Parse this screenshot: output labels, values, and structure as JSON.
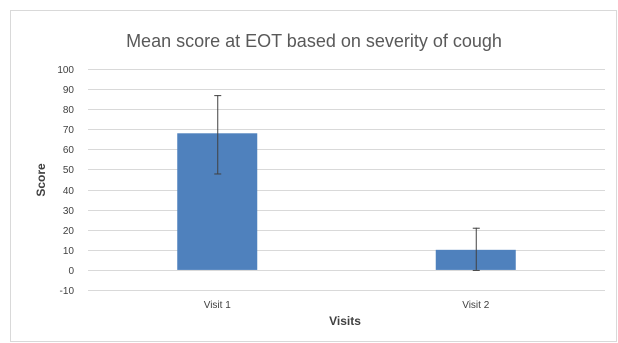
{
  "chart_data": {
    "type": "bar",
    "title": "Mean score at EOT based on severity of cough",
    "xlabel": "Visits",
    "ylabel": "Score",
    "categories": [
      "Visit 1",
      "Visit 2"
    ],
    "values": [
      68,
      10
    ],
    "error_bars": [
      {
        "low": 48,
        "high": 87
      },
      {
        "low": 0,
        "high": 21
      }
    ],
    "ylim": [
      -10,
      100
    ],
    "yticks": [
      -10,
      0,
      10,
      20,
      30,
      40,
      50,
      60,
      70,
      80,
      90,
      100
    ],
    "grid": true,
    "legend": "none",
    "colors": {
      "bar": "#4f81bd",
      "grid": "#d9d9d9",
      "text": "#404040",
      "title": "#595959"
    }
  }
}
